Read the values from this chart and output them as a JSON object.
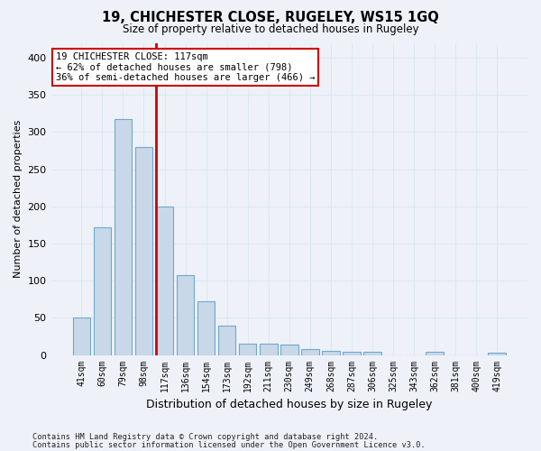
{
  "title1": "19, CHICHESTER CLOSE, RUGELEY, WS15 1GQ",
  "title2": "Size of property relative to detached houses in Rugeley",
  "xlabel": "Distribution of detached houses by size in Rugeley",
  "ylabel": "Number of detached properties",
  "categories": [
    "41sqm",
    "60sqm",
    "79sqm",
    "98sqm",
    "117sqm",
    "136sqm",
    "154sqm",
    "173sqm",
    "192sqm",
    "211sqm",
    "230sqm",
    "249sqm",
    "268sqm",
    "287sqm",
    "306sqm",
    "325sqm",
    "343sqm",
    "362sqm",
    "381sqm",
    "400sqm",
    "419sqm"
  ],
  "values": [
    50,
    172,
    318,
    280,
    200,
    108,
    72,
    40,
    15,
    15,
    14,
    8,
    6,
    4,
    4,
    0,
    0,
    4,
    0,
    0,
    3
  ],
  "bar_color": "#c8d8e8",
  "bar_edge_color": "#6fa8d0",
  "vline_idx": 4,
  "vline_color": "#cc0000",
  "annotation_text": "19 CHICHESTER CLOSE: 117sqm\n← 62% of detached houses are smaller (798)\n36% of semi-detached houses are larger (466) →",
  "annotation_box_color": "#ffffff",
  "annotation_box_edge_color": "#cc0000",
  "grid_color": "#dde8f0",
  "background_color": "#eef2f8",
  "footer1": "Contains HM Land Registry data © Crown copyright and database right 2024.",
  "footer2": "Contains public sector information licensed under the Open Government Licence v3.0.",
  "ylim": [
    0,
    420
  ],
  "yticks": [
    0,
    50,
    100,
    150,
    200,
    250,
    300,
    350,
    400
  ]
}
